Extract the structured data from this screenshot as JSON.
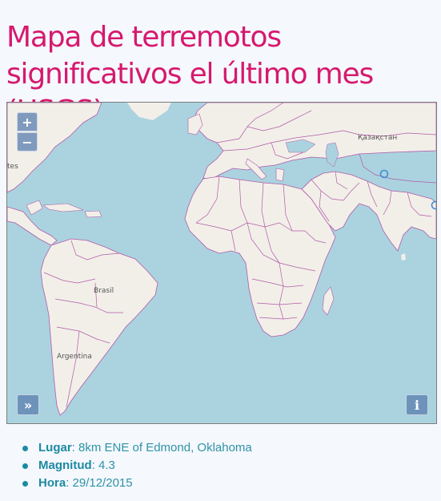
{
  "page": {
    "title": "Mapa de terremotos significativos el último mes (USGS)"
  },
  "map": {
    "place_labels": {
      "kazakhstan": "Қазақстан",
      "brasil": "Brasil",
      "argentina": "Argentina",
      "states_fragment": "tes"
    },
    "controls": {
      "zoom_in": "+",
      "zoom_out": "−",
      "expand": "»",
      "info": "i"
    },
    "colors": {
      "water": "#aad3df",
      "land": "#f2efe9",
      "borders": "#b15aa8",
      "marker": "#3f8ed8"
    }
  },
  "details": {
    "place_label": "Lugar",
    "place_value": ": 8km ENE of Edmond, Oklahoma",
    "magnitude_label": "Magnitud",
    "magnitude_value": ": 4.3",
    "time_label": "Hora",
    "time_value": ": 29/12/2015"
  }
}
